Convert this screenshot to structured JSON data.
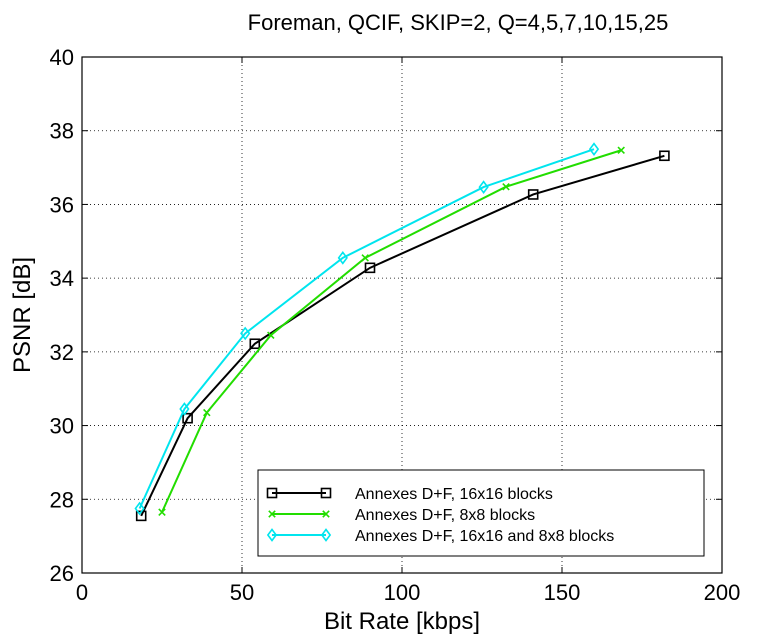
{
  "chart_data": {
    "type": "line",
    "title": "Foreman, QCIF, SKIP=2, Q=4,5,7,10,15,25",
    "xlabel": "Bit Rate [kbps]",
    "ylabel": "PSNR [dB]",
    "xlim": [
      0,
      200
    ],
    "ylim": [
      26,
      40
    ],
    "xticks": [
      0,
      50,
      100,
      150,
      200
    ],
    "yticks": [
      26,
      28,
      30,
      32,
      34,
      36,
      38,
      40
    ],
    "grid": true,
    "legend_position": "bottom-right",
    "series": [
      {
        "name": "Annexes D+F, 16x16 blocks",
        "color": "#000000",
        "marker": "square",
        "x": [
          18.5,
          33,
          54,
          90,
          141,
          182
        ],
        "y": [
          27.55,
          30.2,
          32.22,
          34.28,
          36.27,
          37.32
        ]
      },
      {
        "name": "Annexes D+F, 8x8 blocks",
        "color": "#22dd00",
        "marker": "x",
        "x": [
          25,
          39,
          59,
          88.5,
          132.5,
          168.5
        ],
        "y": [
          27.65,
          30.35,
          32.45,
          34.55,
          36.48,
          37.47
        ]
      },
      {
        "name": "Annexes D+F, 16x16 and 8x8 blocks",
        "color": "#00e5ee",
        "marker": "diamond",
        "x": [
          18,
          32,
          51,
          81.5,
          125.5,
          160
        ],
        "y": [
          27.75,
          30.45,
          32.5,
          34.55,
          36.47,
          37.5
        ]
      }
    ]
  }
}
